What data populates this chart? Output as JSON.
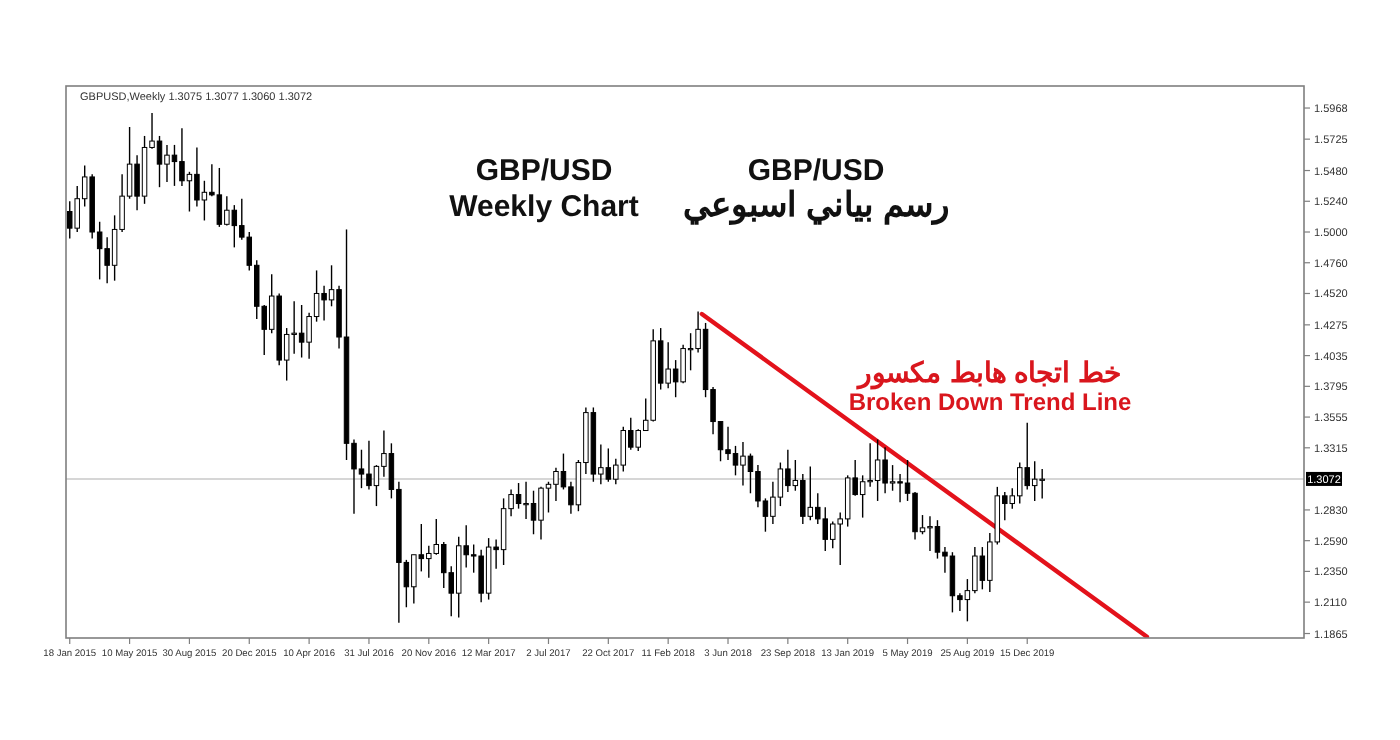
{
  "chart_data": {
    "type": "candlestick",
    "grid": false,
    "annotations": [
      "GBPUSD,Weekly  1.3075 1.3077 1.3060 1.3072",
      "GBP/USD",
      "Weekly Chart",
      "GBP/USD",
      "رسم بياني اسبوعي",
      "خط اتجاه هابط مكسور",
      "Broken Down Trend Line"
    ],
    "xlim": [
      "2015-01-11",
      "2021-05-16"
    ],
    "ylim": [
      1.183,
      1.614
    ],
    "xticks": [
      {
        "value": "2015-01-18",
        "label": "18 Jan 2015"
      },
      {
        "value": "2015-05-10",
        "label": "10 May 2015"
      },
      {
        "value": "2015-08-30",
        "label": "30 Aug 2015"
      },
      {
        "value": "2015-12-20",
        "label": "20 Dec 2015"
      },
      {
        "value": "2016-04-10",
        "label": "10 Apr 2016"
      },
      {
        "value": "2016-07-31",
        "label": "31 Jul 2016"
      },
      {
        "value": "2016-11-20",
        "label": "20 Nov 2016"
      },
      {
        "value": "2017-03-12",
        "label": "12 Mar 2017"
      },
      {
        "value": "2017-07-02",
        "label": "2 Jul 2017"
      },
      {
        "value": "2017-10-22",
        "label": "22 Oct 2017"
      },
      {
        "value": "2018-02-11",
        "label": "11 Feb 2018"
      },
      {
        "value": "2018-06-03",
        "label": "3 Jun 2018"
      },
      {
        "value": "2018-09-23",
        "label": "23 Sep 2018"
      },
      {
        "value": "2019-01-13",
        "label": "13 Jan 2019"
      },
      {
        "value": "2019-05-05",
        "label": "5 May 2019"
      },
      {
        "value": "2019-08-25",
        "label": "25 Aug 2019"
      },
      {
        "value": "2019-12-15",
        "label": "15 Dec 2019"
      }
    ],
    "yticks": [
      {
        "value": 1.5968,
        "label": "1.5968"
      },
      {
        "value": 1.5725,
        "label": "1.5725"
      },
      {
        "value": 1.548,
        "label": "1.5480"
      },
      {
        "value": 1.524,
        "label": "1.5240"
      },
      {
        "value": 1.5,
        "label": "1.5000"
      },
      {
        "value": 1.476,
        "label": "1.4760"
      },
      {
        "value": 1.452,
        "label": "1.4520"
      },
      {
        "value": 1.4275,
        "label": "1.4275"
      },
      {
        "value": 1.4035,
        "label": "1.4035"
      },
      {
        "value": 1.3795,
        "label": "1.3795"
      },
      {
        "value": 1.3555,
        "label": "1.3555"
      },
      {
        "value": 1.3315,
        "label": "1.3315"
      },
      {
        "value": 1.283,
        "label": "1.2830"
      },
      {
        "value": 1.259,
        "label": "1.2590"
      },
      {
        "value": 1.235,
        "label": "1.2350"
      },
      {
        "value": 1.211,
        "label": "1.2110"
      },
      {
        "value": 1.1865,
        "label": "1.1865"
      }
    ],
    "ref_lines": [
      {
        "axis": "y",
        "value": 1.3072,
        "label": "1.3072",
        "color": "#c8c8c8"
      }
    ],
    "series": [
      {
        "type": "candlestick",
        "color": "#000000",
        "x": [
          "2015-01-18",
          "2015-02-01",
          "2015-02-15",
          "2015-03-01",
          "2015-03-15",
          "2015-03-29",
          "2015-04-12",
          "2015-04-26",
          "2015-05-10",
          "2015-05-24",
          "2015-06-07",
          "2015-06-21",
          "2015-07-05",
          "2015-07-19",
          "2015-08-02",
          "2015-08-16",
          "2015-08-30",
          "2015-09-13",
          "2015-09-27",
          "2015-10-11",
          "2015-10-25",
          "2015-11-08",
          "2015-11-22",
          "2015-12-06",
          "2015-12-20",
          "2016-01-03",
          "2016-01-17",
          "2016-01-31",
          "2016-02-14",
          "2016-02-28",
          "2016-03-13",
          "2016-03-27",
          "2016-04-10",
          "2016-04-24",
          "2016-05-08",
          "2016-05-22",
          "2016-06-05",
          "2016-06-19",
          "2016-07-03",
          "2016-07-17",
          "2016-07-31",
          "2016-08-14",
          "2016-08-28",
          "2016-09-11",
          "2016-09-25",
          "2016-10-09",
          "2016-10-23",
          "2016-11-06",
          "2016-11-20",
          "2016-12-04",
          "2016-12-18",
          "2017-01-01",
          "2017-01-15",
          "2017-01-29",
          "2017-02-12",
          "2017-02-26",
          "2017-03-12",
          "2017-03-26",
          "2017-04-09",
          "2017-04-23",
          "2017-05-07",
          "2017-05-21",
          "2017-06-04",
          "2017-06-18",
          "2017-07-02",
          "2017-07-16",
          "2017-07-30",
          "2017-08-13",
          "2017-08-27",
          "2017-09-10",
          "2017-09-24",
          "2017-10-08",
          "2017-10-22",
          "2017-11-05",
          "2017-11-19",
          "2017-12-03",
          "2017-12-17",
          "2017-12-31",
          "2018-01-14",
          "2018-01-28",
          "2018-02-11",
          "2018-02-25",
          "2018-03-11",
          "2018-03-25",
          "2018-04-08",
          "2018-04-22",
          "2018-05-06",
          "2018-05-20",
          "2018-06-03",
          "2018-06-17",
          "2018-07-01",
          "2018-07-15",
          "2018-07-29",
          "2018-08-12",
          "2018-08-26",
          "2018-09-09",
          "2018-09-23",
          "2018-10-07",
          "2018-10-21",
          "2018-11-04",
          "2018-11-18",
          "2018-12-02",
          "2018-12-16",
          "2018-12-30",
          "2019-01-13",
          "2019-01-27",
          "2019-02-10",
          "2019-02-24",
          "2019-03-10",
          "2019-03-24",
          "2019-04-07",
          "2019-04-21",
          "2019-05-05",
          "2019-05-19",
          "2019-06-02",
          "2019-06-16",
          "2019-06-30",
          "2019-07-14",
          "2019-07-28",
          "2019-08-11",
          "2019-08-25",
          "2019-09-08",
          "2019-09-22",
          "2019-10-06",
          "2019-10-20",
          "2019-11-03",
          "2019-11-17",
          "2019-12-01",
          "2019-12-15",
          "2019-12-29",
          "2020-01-12"
        ],
        "ohlc": [
          [
            1.516,
            1.524,
            1.495,
            1.503
          ],
          [
            1.503,
            1.536,
            1.5,
            1.526
          ],
          [
            1.526,
            1.552,
            1.52,
            1.543
          ],
          [
            1.543,
            1.545,
            1.495,
            1.5
          ],
          [
            1.5,
            1.508,
            1.463,
            1.487
          ],
          [
            1.487,
            1.496,
            1.46,
            1.474
          ],
          [
            1.474,
            1.513,
            1.462,
            1.502
          ],
          [
            1.502,
            1.545,
            1.5,
            1.528
          ],
          [
            1.528,
            1.582,
            1.526,
            1.553
          ],
          [
            1.553,
            1.56,
            1.517,
            1.528
          ],
          [
            1.528,
            1.575,
            1.522,
            1.566
          ],
          [
            1.566,
            1.593,
            1.565,
            1.571
          ],
          [
            1.571,
            1.575,
            1.535,
            1.553
          ],
          [
            1.553,
            1.568,
            1.539,
            1.56
          ],
          [
            1.56,
            1.568,
            1.536,
            1.555
          ],
          [
            1.555,
            1.581,
            1.536,
            1.54
          ],
          [
            1.54,
            1.547,
            1.516,
            1.545
          ],
          [
            1.545,
            1.566,
            1.52,
            1.525
          ],
          [
            1.525,
            1.54,
            1.509,
            1.531
          ],
          [
            1.531,
            1.553,
            1.528,
            1.529
          ],
          [
            1.529,
            1.55,
            1.504,
            1.506
          ],
          [
            1.506,
            1.528,
            1.505,
            1.517
          ],
          [
            1.517,
            1.521,
            1.488,
            1.505
          ],
          [
            1.505,
            1.526,
            1.494,
            1.496
          ],
          [
            1.496,
            1.5,
            1.47,
            1.474
          ],
          [
            1.474,
            1.478,
            1.432,
            1.442
          ],
          [
            1.442,
            1.443,
            1.404,
            1.424
          ],
          [
            1.424,
            1.467,
            1.421,
            1.45
          ],
          [
            1.45,
            1.452,
            1.396,
            1.4
          ],
          [
            1.4,
            1.425,
            1.384,
            1.42
          ],
          [
            1.42,
            1.446,
            1.405,
            1.421
          ],
          [
            1.421,
            1.443,
            1.402,
            1.414
          ],
          [
            1.414,
            1.437,
            1.401,
            1.434
          ],
          [
            1.434,
            1.47,
            1.43,
            1.452
          ],
          [
            1.452,
            1.458,
            1.431,
            1.447
          ],
          [
            1.447,
            1.474,
            1.442,
            1.455
          ],
          [
            1.455,
            1.458,
            1.409,
            1.418
          ],
          [
            1.418,
            1.502,
            1.322,
            1.335
          ],
          [
            1.335,
            1.338,
            1.28,
            1.315
          ],
          [
            1.315,
            1.33,
            1.3,
            1.311
          ],
          [
            1.311,
            1.337,
            1.299,
            1.302
          ],
          [
            1.302,
            1.318,
            1.286,
            1.317
          ],
          [
            1.317,
            1.345,
            1.309,
            1.327
          ],
          [
            1.327,
            1.335,
            1.292,
            1.299
          ],
          [
            1.299,
            1.305,
            1.195,
            1.242
          ],
          [
            1.242,
            1.244,
            1.207,
            1.223
          ],
          [
            1.223,
            1.248,
            1.21,
            1.248
          ],
          [
            1.248,
            1.272,
            1.235,
            1.245
          ],
          [
            1.245,
            1.255,
            1.23,
            1.249
          ],
          [
            1.249,
            1.276,
            1.248,
            1.256
          ],
          [
            1.256,
            1.258,
            1.222,
            1.234
          ],
          [
            1.234,
            1.239,
            1.2,
            1.218
          ],
          [
            1.218,
            1.262,
            1.199,
            1.255
          ],
          [
            1.255,
            1.271,
            1.238,
            1.248
          ],
          [
            1.248,
            1.256,
            1.234,
            1.247
          ],
          [
            1.247,
            1.252,
            1.211,
            1.218
          ],
          [
            1.218,
            1.261,
            1.213,
            1.254
          ],
          [
            1.254,
            1.26,
            1.237,
            1.252
          ],
          [
            1.252,
            1.292,
            1.24,
            1.284
          ],
          [
            1.284,
            1.299,
            1.278,
            1.295
          ],
          [
            1.295,
            1.304,
            1.284,
            1.288
          ],
          [
            1.288,
            1.305,
            1.276,
            1.288
          ],
          [
            1.288,
            1.298,
            1.264,
            1.275
          ],
          [
            1.275,
            1.301,
            1.26,
            1.3
          ],
          [
            1.3,
            1.305,
            1.281,
            1.303
          ],
          [
            1.303,
            1.316,
            1.29,
            1.313
          ],
          [
            1.313,
            1.327,
            1.299,
            1.301
          ],
          [
            1.301,
            1.305,
            1.28,
            1.287
          ],
          [
            1.287,
            1.322,
            1.282,
            1.32
          ],
          [
            1.32,
            1.363,
            1.311,
            1.359
          ],
          [
            1.359,
            1.363,
            1.305,
            1.311
          ],
          [
            1.311,
            1.334,
            1.303,
            1.316
          ],
          [
            1.316,
            1.331,
            1.305,
            1.307
          ],
          [
            1.307,
            1.323,
            1.303,
            1.318
          ],
          [
            1.318,
            1.348,
            1.313,
            1.345
          ],
          [
            1.345,
            1.355,
            1.33,
            1.332
          ],
          [
            1.332,
            1.346,
            1.329,
            1.345
          ],
          [
            1.345,
            1.37,
            1.345,
            1.353
          ],
          [
            1.353,
            1.424,
            1.352,
            1.415
          ],
          [
            1.415,
            1.425,
            1.377,
            1.382
          ],
          [
            1.382,
            1.414,
            1.378,
            1.393
          ],
          [
            1.393,
            1.4,
            1.371,
            1.383
          ],
          [
            1.383,
            1.412,
            1.382,
            1.409
          ],
          [
            1.409,
            1.421,
            1.392,
            1.409
          ],
          [
            1.409,
            1.438,
            1.406,
            1.424
          ],
          [
            1.424,
            1.429,
            1.371,
            1.377
          ],
          [
            1.377,
            1.379,
            1.342,
            1.352
          ],
          [
            1.352,
            1.352,
            1.321,
            1.33
          ],
          [
            1.33,
            1.348,
            1.322,
            1.327
          ],
          [
            1.327,
            1.333,
            1.31,
            1.318
          ],
          [
            1.318,
            1.336,
            1.302,
            1.325
          ],
          [
            1.325,
            1.327,
            1.296,
            1.313
          ],
          [
            1.313,
            1.318,
            1.285,
            1.29
          ],
          [
            1.29,
            1.292,
            1.266,
            1.278
          ],
          [
            1.278,
            1.305,
            1.272,
            1.293
          ],
          [
            1.293,
            1.32,
            1.286,
            1.315
          ],
          [
            1.315,
            1.33,
            1.297,
            1.302
          ],
          [
            1.302,
            1.322,
            1.298,
            1.306
          ],
          [
            1.306,
            1.311,
            1.272,
            1.278
          ],
          [
            1.278,
            1.317,
            1.275,
            1.285
          ],
          [
            1.285,
            1.296,
            1.272,
            1.276
          ],
          [
            1.276,
            1.285,
            1.251,
            1.26
          ],
          [
            1.26,
            1.274,
            1.253,
            1.272
          ],
          [
            1.272,
            1.281,
            1.24,
            1.276
          ],
          [
            1.276,
            1.31,
            1.27,
            1.308
          ],
          [
            1.308,
            1.322,
            1.294,
            1.295
          ],
          [
            1.295,
            1.31,
            1.277,
            1.305
          ],
          [
            1.305,
            1.335,
            1.301,
            1.306
          ],
          [
            1.306,
            1.338,
            1.29,
            1.322
          ],
          [
            1.322,
            1.332,
            1.296,
            1.304
          ],
          [
            1.304,
            1.318,
            1.298,
            1.305
          ],
          [
            1.305,
            1.311,
            1.289,
            1.304
          ],
          [
            1.304,
            1.322,
            1.29,
            1.296
          ],
          [
            1.296,
            1.297,
            1.26,
            1.266
          ],
          [
            1.266,
            1.279,
            1.264,
            1.269
          ],
          [
            1.269,
            1.278,
            1.251,
            1.27
          ],
          [
            1.27,
            1.275,
            1.245,
            1.25
          ],
          [
            1.25,
            1.254,
            1.234,
            1.247
          ],
          [
            1.247,
            1.25,
            1.203,
            1.216
          ],
          [
            1.216,
            1.218,
            1.204,
            1.213
          ],
          [
            1.213,
            1.229,
            1.196,
            1.22
          ],
          [
            1.22,
            1.254,
            1.218,
            1.247
          ],
          [
            1.247,
            1.254,
            1.221,
            1.228
          ],
          [
            1.228,
            1.265,
            1.219,
            1.258
          ],
          [
            1.258,
            1.301,
            1.256,
            1.294
          ],
          [
            1.294,
            1.297,
            1.275,
            1.288
          ],
          [
            1.288,
            1.3,
            1.284,
            1.294
          ],
          [
            1.294,
            1.32,
            1.288,
            1.316
          ],
          [
            1.316,
            1.351,
            1.299,
            1.302
          ],
          [
            1.302,
            1.321,
            1.29,
            1.307
          ],
          [
            1.307,
            1.315,
            1.292,
            1.307
          ]
        ]
      },
      {
        "type": "line",
        "color": "#e3121b",
        "x": [
          "2018-04-15",
          "2020-07-26"
        ],
        "values": [
          1.436,
          1.184
        ]
      }
    ]
  }
}
